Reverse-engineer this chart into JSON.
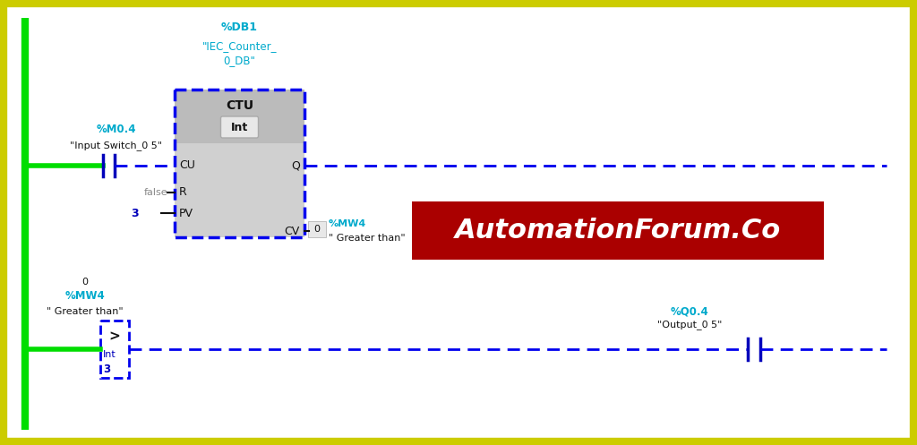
{
  "bg_color": "#ffffff",
  "border_color": "#cccc00",
  "cyan_color": "#00aacc",
  "blue_color": "#0000ee",
  "green_color": "#00dd00",
  "gray_color": "#888888",
  "black_color": "#111111",
  "dark_blue": "#0000bb",
  "box_bg": "#d0d0d0",
  "header_bg": "#bbbbbb",
  "int_badge_bg": "#e8e8e8",
  "automation_bg": "#aa0000",
  "automation_fg": "#ffffff",
  "db1_text": "%DB1",
  "subtitle1": "\"IEC_Counter_",
  "subtitle2": "0_DB\"",
  "ctu_label": "CTU",
  "int_label": "Int",
  "cu_label": "CU",
  "q_label": "Q",
  "r_label": "R",
  "pv_label": "PV",
  "cv_label": "CV",
  "false_label": "false",
  "pv_value": "3",
  "m04_label": "%M0.4",
  "input_switch": "\"Input Switch_0 5\"",
  "mw4_top_val": "0",
  "mw4_top_label": "%MW4",
  "greater_than_top": "\" Greater than\"",
  "mw4_bot_val": "0",
  "mw4_bot_label": "%MW4",
  "greater_than_bot": "\" Greater than\"",
  "q04_label": "%Q0.4",
  "output_05": "\"Output_0 5\"",
  "automation_text": "AutomationForum.Co"
}
